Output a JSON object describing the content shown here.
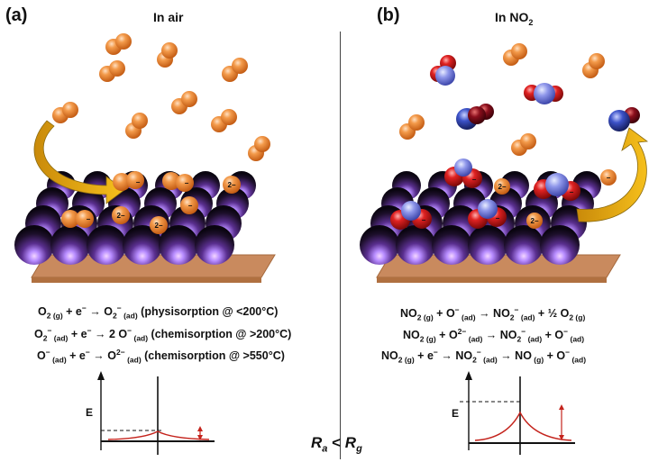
{
  "panel_a": {
    "label": "(a)",
    "title": "In air",
    "eq1": {
      "a": "O",
      "s1": "2 (g)",
      "b": " + e",
      "sup1": "−",
      "c": " → O",
      "s2": "2",
      "sup2": "−",
      "s3": " (ad)",
      "d": " (physisorption @ <200°C)"
    },
    "eq2": {
      "a": "O",
      "s1": "2",
      "sup1": "−",
      "s2": " (ad)",
      "b": " + e",
      "sup2": "−",
      "c": " → 2 O",
      "sup3": "−",
      "s3": " (ad)",
      "d": " (chemisorption @ >200°C)"
    },
    "eq3": {
      "a": "O",
      "sup1": "−",
      "s1": " (ad)",
      "b": " + e",
      "sup2": "−",
      "c": " → O",
      "sup3": "2−",
      "s2": " (ad)",
      "d": " (chemisorption @ >550°C)"
    },
    "energy_label": "E",
    "charge_minus": "−",
    "charge_2minus": "2−"
  },
  "panel_b": {
    "label": "(b)",
    "title_main": "In NO",
    "title_sub": "2",
    "eq1": {
      "a": "NO",
      "s1": "2 (g)",
      "b": " + O",
      "sup1": "−",
      "s2": " (ad)",
      "c": " → NO",
      "s3": "2",
      "sup2": "−",
      "s4": " (ad)",
      "d": " + ½ O",
      "s5": "2 (g)"
    },
    "eq2": {
      "a": "NO",
      "s1": "2 (g)",
      "b": " + O",
      "sup1": "2−",
      "s2": " (ad)",
      "c": " → NO",
      "s3": "2",
      "sup2": "−",
      "s4": " (ad)",
      "d": " + O",
      "sup3": "−",
      "s5": " (ad)"
    },
    "eq3": {
      "a": "NO",
      "s1": "2 (g)",
      "b": " + e",
      "sup1": "−",
      "c": " → NO",
      "s2": "2",
      "sup2": "−",
      "s3": " (ad)",
      "d": " → NO",
      "s4": " (g)",
      "e": " + O",
      "sup3": "−",
      "s5": " (ad)"
    },
    "energy_label": "E"
  },
  "relation": {
    "ra": "R",
    "ra_sub": "a",
    "op": " < ",
    "rg": "R",
    "rg_sub": "g"
  },
  "colors": {
    "oxygen": "#e8782a",
    "substrate": "#c98a5e",
    "sphere_dark": "#1d0f2b",
    "sphere_glow": "#7a59f0",
    "nitrogen": "#7f86e0",
    "oxygen_red": "#d81616",
    "arrow": "#f2b51a",
    "curve": "#c4231c"
  }
}
